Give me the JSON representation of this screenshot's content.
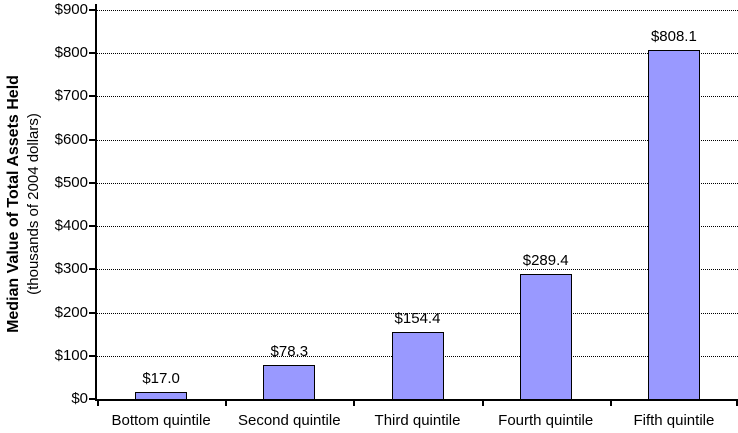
{
  "chart_data": {
    "type": "bar",
    "categories": [
      "Bottom quintile",
      "Second quintile",
      "Third quintile",
      "Fourth quintile",
      "Fifth quintile"
    ],
    "values": [
      17.0,
      78.3,
      154.4,
      289.4,
      808.1
    ],
    "data_labels": [
      "$17.0",
      "$78.3",
      "$154.4",
      "$289.4",
      "$808.1"
    ],
    "ylabel": "Median Value of Total Assets Held",
    "ylabel_sub": "(thousands of 2004 dollars)",
    "xlabel": "",
    "ylim": [
      0,
      900
    ],
    "ytick_interval": 100,
    "ytick_labels": [
      "$0",
      "$100",
      "$200",
      "$300",
      "$400",
      "$500",
      "$600",
      "$700",
      "$800",
      "$900"
    ],
    "grid": "horizontal-dotted",
    "legend_position": "none",
    "bar_color": "#9999FF",
    "bar_border_color": "#000000"
  }
}
